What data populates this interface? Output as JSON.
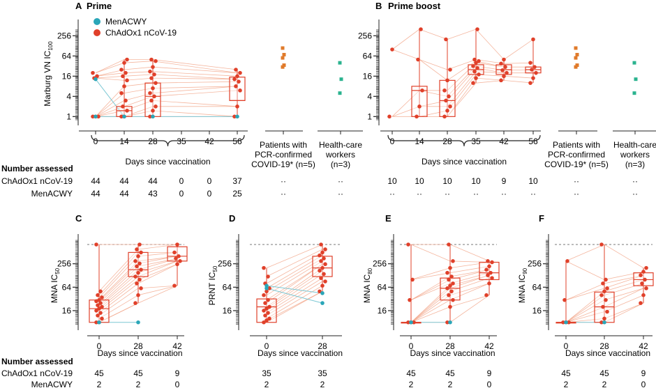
{
  "colors": {
    "chad": "#e0402a",
    "chad_line": "#f2a487",
    "men": "#2aa6b8",
    "men_line": "#7cc8d4",
    "covid": "#e07a2a",
    "hcw": "#2bb38f",
    "axis": "#222222",
    "ref_line": "#777777"
  },
  "legend": {
    "men": "MenACWY",
    "chad": "ChAdOx1 nCoV-19"
  },
  "table": {
    "heading": "Number assessed",
    "row1": "ChAdOx1 nCoV-19",
    "row2": "MenACWY"
  },
  "chart_data": [
    {
      "id": "A",
      "panel_label": "A",
      "title": "Prime",
      "type": "box-scatter",
      "scale": "log2",
      "ylabel": "Marburg VN IC",
      "ylabel_sub": "100",
      "yticks": [
        1,
        4,
        16,
        64,
        256
      ],
      "ylim": [
        0.8,
        400
      ],
      "xlabel": "Days since vaccination",
      "x": [
        0,
        14,
        28,
        35,
        42,
        56
      ],
      "extra_groups": [
        {
          "label1": "Patients with",
          "label2": "PCR-confirmed",
          "label3": "COVID-19* (n=5)",
          "color_key": "covid",
          "values": [
            110,
            70,
            56,
            34,
            30
          ]
        },
        {
          "label1": "Health-care",
          "label2": "workers",
          "label3": "(n=3)",
          "color_key": "hcw",
          "values": [
            40,
            13,
            5
          ]
        }
      ],
      "boxes": [
        {
          "x": 14,
          "q1": 1,
          "median": 1.5,
          "q3": 2
        },
        {
          "x": 28,
          "q1": 1,
          "median": 4,
          "q3": 10
        },
        {
          "x": 56,
          "q1": 3,
          "median": 3,
          "q3": 15
        }
      ],
      "points": {
        "chad": [
          {
            "x": 0,
            "values": [
              1,
              1,
              1,
              14,
              16,
              20
            ]
          },
          {
            "x": 14,
            "values": [
              1,
              1,
              1.5,
              2,
              3,
              5,
              8,
              12,
              16,
              20,
              25,
              40,
              50
            ]
          },
          {
            "x": 28,
            "values": [
              1,
              1.5,
              2,
              3,
              4,
              5,
              7,
              10,
              14,
              18,
              22,
              30,
              45,
              50
            ]
          },
          {
            "x": 56,
            "values": [
              1,
              2,
              6,
              8,
              11,
              13,
              16,
              20,
              25
            ]
          }
        ],
        "men": [
          {
            "x": 0,
            "values": [
              1,
              13
            ]
          },
          {
            "x": 14,
            "values": [
              1
            ]
          },
          {
            "x": 28,
            "values": [
              1
            ]
          },
          {
            "x": 56,
            "values": [
              1
            ]
          }
        ]
      },
      "counts": {
        "chad": [
          "44",
          "44",
          "44",
          "0",
          "0",
          "37",
          "··",
          "··"
        ],
        "men": [
          "44",
          "44",
          "43",
          "0",
          "0",
          "25",
          "··",
          "··"
        ]
      }
    },
    {
      "id": "B",
      "panel_label": "B",
      "title": "Prime boost",
      "type": "box-scatter",
      "scale": "log2",
      "yticks": [
        1,
        4,
        16,
        64,
        256
      ],
      "ylim": [
        0.8,
        400
      ],
      "xlabel": "Days since vaccination",
      "x": [
        0,
        14,
        28,
        35,
        42,
        56
      ],
      "extra_groups": [
        {
          "label1": "Patients with",
          "label2": "PCR-confirmed",
          "label3": "COVID-19* (n=5)",
          "color_key": "covid",
          "values": [
            110,
            70,
            56,
            34,
            30
          ]
        },
        {
          "label1": "Health-care",
          "label2": "workers",
          "label3": "(n=3)",
          "color_key": "hcw",
          "values": [
            40,
            13,
            5
          ]
        }
      ],
      "boxes": [
        {
          "x": 14,
          "q1": 1,
          "median": 6,
          "q3": 8
        },
        {
          "x": 28,
          "q1": 1,
          "median": 3,
          "q3": 12
        },
        {
          "x": 35,
          "q1": 18,
          "median": 25,
          "q3": 35
        },
        {
          "x": 42,
          "q1": 18,
          "median": 25,
          "q3": 35
        },
        {
          "x": 56,
          "q1": 20,
          "median": 25,
          "q3": 30
        }
      ],
      "points": {
        "chad": [
          {
            "x": 0,
            "values": [
              1,
              100
            ]
          },
          {
            "x": 14,
            "values": [
              1,
              2,
              6,
              50,
              400
            ]
          },
          {
            "x": 28,
            "values": [
              1,
              1.5,
              2,
              3,
              4,
              6,
              12,
              25,
              200
            ]
          },
          {
            "x": 35,
            "values": [
              10,
              14,
              18,
              22,
              28,
              32,
              40,
              45,
              50,
              400
            ]
          },
          {
            "x": 42,
            "values": [
              12,
              16,
              20,
              24,
              30,
              38,
              50
            ]
          },
          {
            "x": 56,
            "values": [
              10,
              14,
              20,
              25,
              30,
              40,
              200
            ]
          }
        ],
        "men": []
      },
      "counts": {
        "chad": [
          "10",
          "10",
          "10",
          "10",
          "9",
          "10",
          "··",
          "··"
        ],
        "men": [
          "··",
          "··",
          "··",
          "··",
          "··",
          "··",
          "··",
          "··"
        ]
      }
    },
    {
      "id": "C",
      "panel_label": "C",
      "type": "box-scatter",
      "scale": "log2",
      "ylabel": "MNA IC",
      "ylabel_sub": "50",
      "yticks": [
        16,
        64,
        256
      ],
      "ylim": [
        7,
        1024
      ],
      "ref_line": 800,
      "xlabel": "Days since vaccination",
      "x": [
        0,
        28,
        42
      ],
      "boxes": [
        {
          "x": 0,
          "q1": 8,
          "median": 18,
          "q3": 30
        },
        {
          "x": 28,
          "q1": 120,
          "median": 180,
          "q3": 500
        },
        {
          "x": 42,
          "q1": 300,
          "median": 400,
          "q3": 700
        }
      ],
      "points": {
        "chad": [
          {
            "x": 0,
            "values": [
              8,
              8,
              10,
              12,
              14,
              16,
              18,
              20,
              22,
              25,
              28,
              30,
              35,
              40,
              50,
              800
            ]
          },
          {
            "x": 28,
            "values": [
              25,
              40,
              60,
              80,
              100,
              120,
              150,
              180,
              220,
              260,
              300,
              400,
              500,
              600,
              800
            ]
          },
          {
            "x": 42,
            "values": [
              70,
              250,
              300,
              350,
              400,
              500,
              800
            ]
          }
        ],
        "men": [
          {
            "x": 0,
            "values": [
              8
            ]
          },
          {
            "x": 28,
            "values": [
              8
            ]
          }
        ]
      },
      "counts": {
        "chad": [
          "45",
          "45",
          "9"
        ],
        "men": [
          "2",
          "2",
          "0"
        ]
      }
    },
    {
      "id": "D",
      "panel_label": "D",
      "type": "box-scatter",
      "scale": "log2",
      "ylabel": "PRNT IC",
      "ylabel_sub": "50",
      "yticks": [
        16,
        64,
        256
      ],
      "ylim": [
        7,
        1024
      ],
      "ref_line": 800,
      "xlabel": "Days since vaccination",
      "x": [
        0,
        28
      ],
      "boxes": [
        {
          "x": 0,
          "q1": 8,
          "median": 20,
          "q3": 32
        },
        {
          "x": 28,
          "q1": 120,
          "median": 200,
          "q3": 400
        }
      ],
      "points": {
        "chad": [
          {
            "x": 0,
            "values": [
              8,
              9,
              10,
              12,
              14,
              16,
              18,
              20,
              25,
              30,
              40,
              50,
              60,
              80,
              120,
              200
            ]
          },
          {
            "x": 28,
            "values": [
              50,
              70,
              90,
              110,
              140,
              170,
              200,
              250,
              300,
              350,
              420,
              500,
              600,
              800
            ]
          }
        ],
        "men": [
          {
            "x": 0,
            "values": [
              60,
              70
            ]
          },
          {
            "x": 28,
            "values": [
              25,
              45
            ]
          }
        ]
      },
      "counts": {
        "chad": [
          "35",
          "35"
        ],
        "men": [
          "2",
          "2"
        ]
      }
    },
    {
      "id": "E",
      "panel_label": "E",
      "type": "box-scatter",
      "scale": "log2",
      "ylabel": "MNA IC",
      "ylabel_sub": "80",
      "yticks": [
        16,
        64,
        256
      ],
      "ylim": [
        7,
        1024
      ],
      "ref_line": 800,
      "xlabel": "Days since vaccination",
      "x": [
        0,
        28,
        42
      ],
      "boxes": [
        {
          "x": 0,
          "q1": 8,
          "median": 8,
          "q3": 8
        },
        {
          "x": 28,
          "q1": 30,
          "median": 60,
          "q3": 110
        },
        {
          "x": 42,
          "q1": 100,
          "median": 150,
          "q3": 280
        }
      ],
      "points": {
        "chad": [
          {
            "x": 0,
            "values": [
              8,
              8,
              8,
              30,
              100,
              800
            ]
          },
          {
            "x": 28,
            "values": [
              8,
              20,
              30,
              40,
              50,
              60,
              70,
              80,
              100,
              120,
              150,
              200,
              300,
              800
            ]
          },
          {
            "x": 42,
            "values": [
              40,
              80,
              110,
              130,
              150,
              180,
              220,
              280,
              300
            ]
          }
        ],
        "men": [
          {
            "x": 0,
            "values": [
              8
            ]
          },
          {
            "x": 28,
            "values": [
              8
            ]
          }
        ]
      },
      "counts": {
        "chad": [
          "45",
          "45",
          "9"
        ],
        "men": [
          "2",
          "2",
          "0"
        ]
      }
    },
    {
      "id": "F",
      "panel_label": "F",
      "type": "box-scatter",
      "scale": "log2",
      "ylabel": "MNA IC",
      "ylabel_sub": "90",
      "yticks": [
        16,
        64,
        256
      ],
      "ylim": [
        7,
        1024
      ],
      "ref_line": 800,
      "xlabel": "Days since vaccination",
      "x": [
        0,
        28,
        42
      ],
      "boxes": [
        {
          "x": 0,
          "q1": 8,
          "median": 8,
          "q3": 8
        },
        {
          "x": 28,
          "q1": 8,
          "median": 20,
          "q3": 48
        },
        {
          "x": 42,
          "q1": 70,
          "median": 100,
          "q3": 150
        }
      ],
      "points": {
        "chad": [
          {
            "x": 0,
            "values": [
              8,
              8,
              8,
              30,
              300
            ]
          },
          {
            "x": 28,
            "values": [
              8,
              10,
              15,
              20,
              30,
              40,
              50,
              60,
              80,
              100,
              800
            ]
          },
          {
            "x": 42,
            "values": [
              25,
              40,
              60,
              80,
              100,
              130,
              160,
              200
            ]
          }
        ],
        "men": [
          {
            "x": 0,
            "values": [
              8
            ]
          },
          {
            "x": 28,
            "values": [
              8
            ]
          }
        ]
      },
      "counts": {
        "chad": [
          "45",
          "45",
          "9"
        ],
        "men": [
          "2",
          "2",
          "0"
        ]
      }
    }
  ]
}
